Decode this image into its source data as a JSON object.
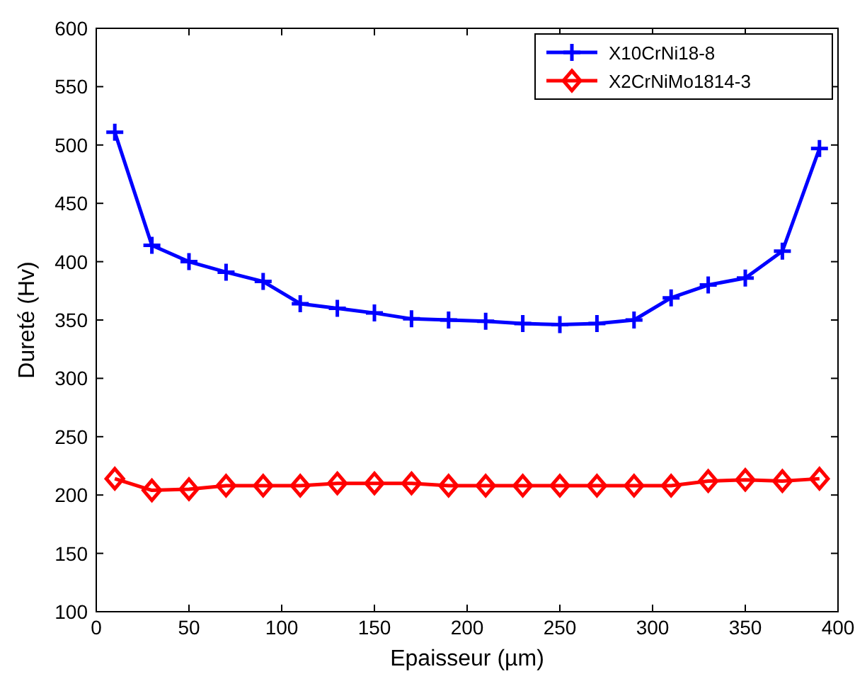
{
  "chart_data": {
    "type": "line",
    "xlabel": "Epaisseur (µm)",
    "ylabel": "Dureté (Hv)",
    "x": [
      10,
      30,
      50,
      70,
      90,
      110,
      130,
      150,
      170,
      190,
      210,
      230,
      250,
      270,
      290,
      310,
      330,
      350,
      370,
      390
    ],
    "xlim": [
      0,
      400
    ],
    "xticks": [
      0,
      50,
      100,
      150,
      200,
      250,
      300,
      350,
      400
    ],
    "ylim": [
      100,
      600
    ],
    "yticks": [
      100,
      150,
      200,
      250,
      300,
      350,
      400,
      450,
      500,
      550,
      600
    ],
    "grid": false,
    "legend": "top right",
    "line_style": "solid",
    "series": [
      {
        "name": "X10CrNi18-8",
        "color": "#0000ff",
        "marker": "cross",
        "values": [
          511,
          414,
          400,
          391,
          383,
          364,
          360,
          356,
          351,
          350,
          349,
          347,
          346,
          347,
          350,
          369,
          380,
          386,
          409,
          497
        ]
      },
      {
        "name": "X2CrNiMo1814-3",
        "color": "#ff0000",
        "marker": "diamond",
        "values": [
          214,
          204,
          205,
          208,
          208,
          208,
          210,
          210,
          210,
          208,
          208,
          208,
          208,
          208,
          208,
          208,
          212,
          213,
          212,
          214
        ]
      }
    ]
  }
}
